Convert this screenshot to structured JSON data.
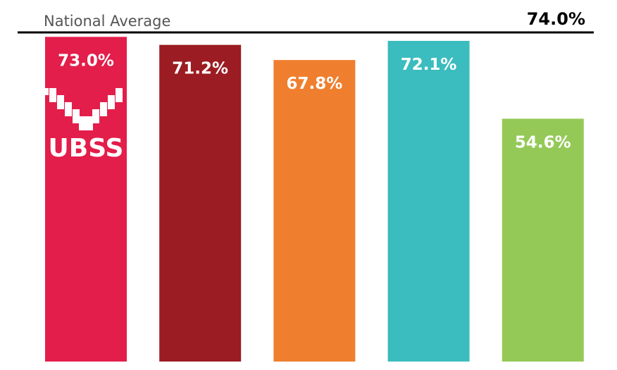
{
  "chart_data": {
    "type": "bar",
    "categories": [
      null,
      null,
      null,
      null,
      null
    ],
    "values": [
      73.0,
      71.2,
      67.8,
      72.1,
      54.6
    ],
    "value_labels": [
      "73.0%",
      "71.2%",
      "67.8%",
      "72.1%",
      "54.6%"
    ],
    "colors": [
      "#e31e4a",
      "#9b1c22",
      "#ef7f2e",
      "#3bbcbf",
      "#94c957"
    ],
    "ylim": [
      0,
      74
    ],
    "reference_line": {
      "label": "National Average",
      "value": 74.0,
      "value_label": "74.0%"
    },
    "logo_text": "UBSS"
  }
}
